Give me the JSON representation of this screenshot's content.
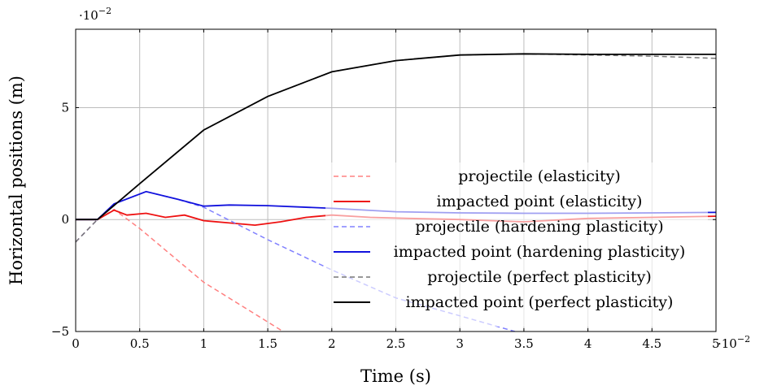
{
  "chart_data": {
    "type": "line",
    "title": "",
    "xlabel": "Time (s)",
    "ylabel": "Horizontal positions (m)",
    "x_scale_label": "·10",
    "x_scale_exp": "−2",
    "y_scale_label": "·10",
    "y_scale_exp": "−2",
    "xlim": [
      0,
      5
    ],
    "ylim": [
      -5,
      8.5
    ],
    "x_ticks": [
      0,
      0.5,
      1,
      1.5,
      2,
      2.5,
      3,
      3.5,
      4,
      4.5,
      5
    ],
    "x_tick_labels": [
      "0",
      "0.5",
      "1",
      "1.5",
      "2",
      "2.5",
      "3",
      "3.5",
      "4",
      "4.5",
      "5"
    ],
    "y_ticks": [
      -5,
      0,
      5
    ],
    "y_tick_labels": [
      "−5",
      "0",
      "5"
    ],
    "grid": true,
    "legend_position": "lower-right",
    "series": [
      {
        "name": "projectile (elasticity)",
        "color": "#ff8080",
        "dash": "dashed",
        "points": [
          [
            0,
            -1.0
          ],
          [
            0.17,
            0.0
          ],
          [
            0.3,
            0.45
          ],
          [
            0.5,
            -0.4
          ],
          [
            1.0,
            -2.8
          ],
          [
            1.62,
            -5.0
          ]
        ]
      },
      {
        "name": "impacted point (elasticity)",
        "color": "#ee1111",
        "dash": "solid",
        "points": [
          [
            0,
            0
          ],
          [
            0.17,
            0
          ],
          [
            0.3,
            0.42
          ],
          [
            0.4,
            0.2
          ],
          [
            0.55,
            0.28
          ],
          [
            0.7,
            0.1
          ],
          [
            0.85,
            0.2
          ],
          [
            1.0,
            -0.05
          ],
          [
            1.2,
            -0.15
          ],
          [
            1.4,
            -0.25
          ],
          [
            1.6,
            -0.1
          ],
          [
            1.8,
            0.1
          ],
          [
            2.0,
            0.2
          ],
          [
            2.3,
            0.1
          ],
          [
            2.6,
            0.05
          ],
          [
            3.0,
            0.0
          ],
          [
            3.5,
            -0.1
          ],
          [
            4.0,
            0.05
          ],
          [
            4.5,
            0.1
          ],
          [
            5.0,
            0.15
          ]
        ]
      },
      {
        "name": "projectile (hardening plasticity)",
        "color": "#8080ff",
        "dash": "dashed",
        "points": [
          [
            0,
            -1.0
          ],
          [
            0.17,
            0.0
          ],
          [
            0.3,
            0.7
          ],
          [
            0.55,
            1.25
          ],
          [
            0.8,
            0.9
          ],
          [
            1.0,
            0.55
          ],
          [
            1.5,
            -0.9
          ],
          [
            2.0,
            -2.25
          ],
          [
            2.5,
            -3.5
          ],
          [
            3.0,
            -4.3
          ],
          [
            3.43,
            -5.0
          ]
        ]
      },
      {
        "name": "impacted point (hardening plasticity)",
        "color": "#1111dd",
        "dash": "solid",
        "points": [
          [
            0,
            0
          ],
          [
            0.17,
            0
          ],
          [
            0.3,
            0.7
          ],
          [
            0.55,
            1.25
          ],
          [
            0.8,
            0.9
          ],
          [
            1.0,
            0.6
          ],
          [
            1.2,
            0.65
          ],
          [
            1.5,
            0.62
          ],
          [
            2.0,
            0.5
          ],
          [
            2.5,
            0.35
          ],
          [
            3.0,
            0.3
          ],
          [
            3.5,
            0.28
          ],
          [
            4.0,
            0.28
          ],
          [
            4.5,
            0.3
          ],
          [
            5.0,
            0.32
          ]
        ]
      },
      {
        "name": "projectile (perfect plasticity)",
        "color": "#777777",
        "dash": "dashed",
        "points": [
          [
            0,
            -1.0
          ],
          [
            0.17,
            0.0
          ],
          [
            0.5,
            1.6
          ],
          [
            1.0,
            4.0
          ],
          [
            1.5,
            5.5
          ],
          [
            2.0,
            6.6
          ],
          [
            2.5,
            7.1
          ],
          [
            3.0,
            7.35
          ],
          [
            3.5,
            7.4
          ],
          [
            4.0,
            7.35
          ],
          [
            4.5,
            7.3
          ],
          [
            5.0,
            7.2
          ]
        ]
      },
      {
        "name": "impacted point (perfect plasticity)",
        "color": "#000000",
        "dash": "solid",
        "points": [
          [
            0,
            0
          ],
          [
            0.17,
            0
          ],
          [
            0.5,
            1.6
          ],
          [
            1.0,
            4.0
          ],
          [
            1.5,
            5.5
          ],
          [
            2.0,
            6.6
          ],
          [
            2.5,
            7.1
          ],
          [
            3.0,
            7.35
          ],
          [
            3.5,
            7.4
          ],
          [
            4.0,
            7.38
          ],
          [
            4.5,
            7.38
          ],
          [
            5.0,
            7.38
          ]
        ]
      }
    ]
  }
}
